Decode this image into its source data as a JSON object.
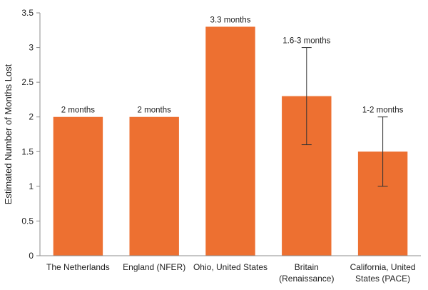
{
  "chart_data": {
    "type": "bar",
    "ylabel": "Estimated Number of Months Lost",
    "xlabel": "",
    "ylim": [
      0,
      3.5
    ],
    "ytick_step": 0.5,
    "grid": false,
    "legend": "none",
    "bar_color": "#ED7031",
    "categories": [
      [
        "The Netherlands"
      ],
      [
        "England (NFER)"
      ],
      [
        "Ohio, United States"
      ],
      [
        "Britain",
        "(Renaissance)"
      ],
      [
        "California, United",
        "States (PACE)"
      ]
    ],
    "values": [
      2,
      2,
      3.3,
      2.3,
      1.5
    ],
    "error_bars": [
      null,
      null,
      null,
      [
        1.6,
        3.0
      ],
      [
        1.0,
        2.0
      ]
    ],
    "data_labels": [
      "2 months",
      "2 months",
      "3.3 months",
      "1.6-3 months",
      "1-2 months"
    ]
  }
}
